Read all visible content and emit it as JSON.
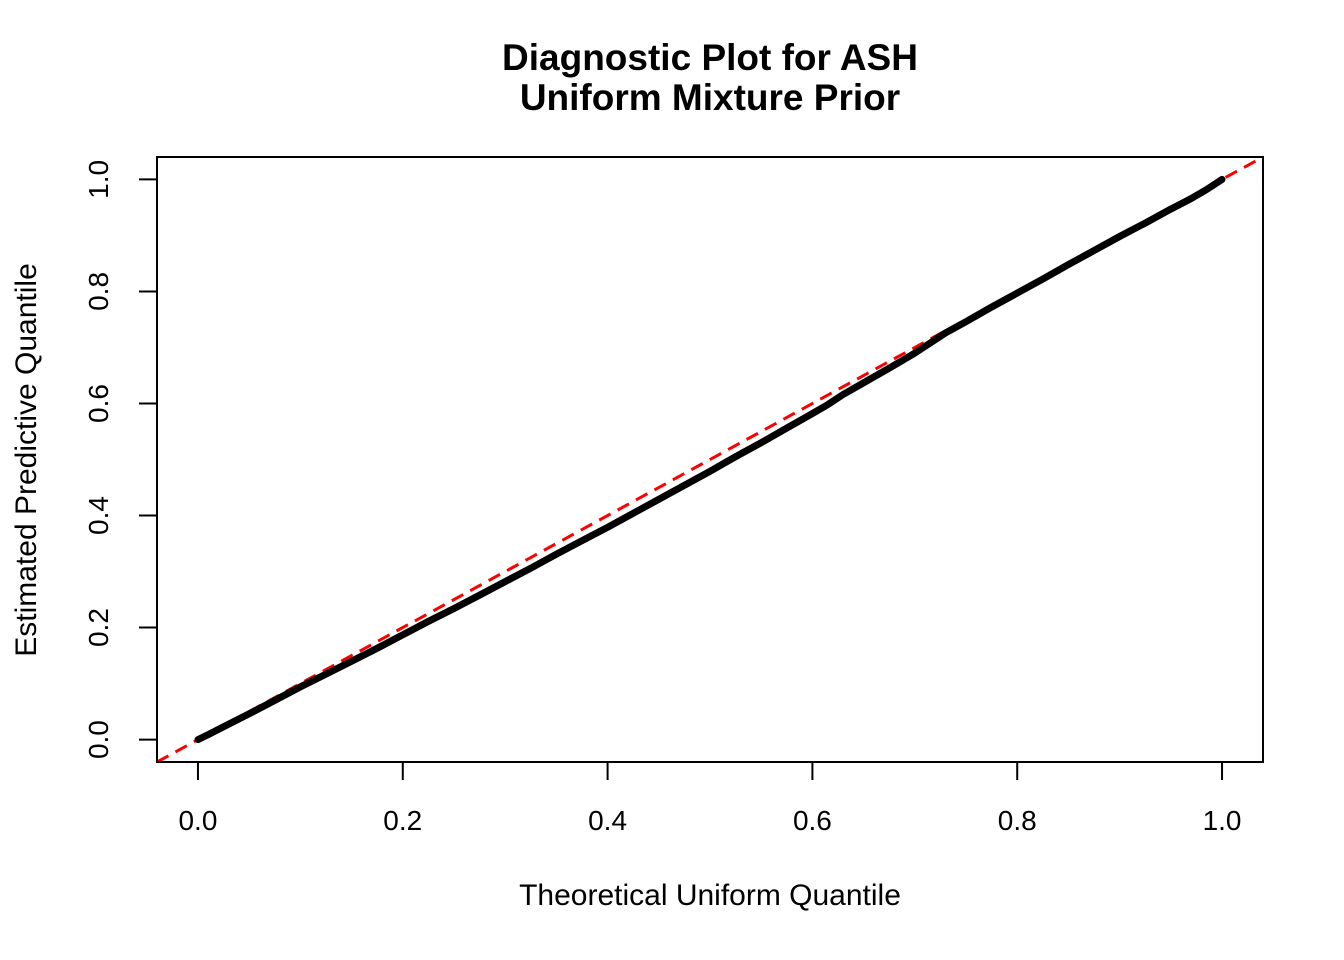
{
  "chart_data": {
    "type": "scatter",
    "title_line1": "Diagnostic Plot for ASH",
    "title_line2": "Uniform Mixture Prior",
    "xlabel": "Theoretical Uniform Quantile",
    "ylabel": "Estimated Predictive Quantile",
    "xlim": [
      -0.04,
      1.04
    ],
    "ylim": [
      -0.04,
      1.04
    ],
    "grid": false,
    "legend": null,
    "x_ticks": {
      "values": [
        0.0,
        0.2,
        0.4,
        0.6,
        0.8,
        1.0
      ],
      "labels": [
        "0.0",
        "0.2",
        "0.4",
        "0.6",
        "0.8",
        "1.0"
      ]
    },
    "y_ticks": {
      "values": [
        0.0,
        0.2,
        0.4,
        0.6,
        0.8,
        1.0
      ],
      "labels": [
        "0.0",
        "0.2",
        "0.4",
        "0.6",
        "0.8",
        "1.0"
      ]
    },
    "reference_line": {
      "name": "y-equals-x-diagonal",
      "color": "#FF0000",
      "style": "dashed",
      "from": [
        -0.04,
        -0.04
      ],
      "to": [
        1.04,
        1.04
      ]
    },
    "series": [
      {
        "name": "estimated-predictive-quantiles",
        "color": "#000000",
        "marker": "point",
        "points": [
          [
            0.0,
            0.0
          ],
          [
            0.01,
            0.009
          ],
          [
            0.025,
            0.023
          ],
          [
            0.05,
            0.046
          ],
          [
            0.075,
            0.07
          ],
          [
            0.1,
            0.094
          ],
          [
            0.125,
            0.117
          ],
          [
            0.15,
            0.14
          ],
          [
            0.175,
            0.163
          ],
          [
            0.2,
            0.187
          ],
          [
            0.225,
            0.211
          ],
          [
            0.25,
            0.234
          ],
          [
            0.275,
            0.258
          ],
          [
            0.3,
            0.282
          ],
          [
            0.325,
            0.306
          ],
          [
            0.35,
            0.331
          ],
          [
            0.375,
            0.355
          ],
          [
            0.4,
            0.379
          ],
          [
            0.425,
            0.404
          ],
          [
            0.45,
            0.429
          ],
          [
            0.475,
            0.454
          ],
          [
            0.5,
            0.479
          ],
          [
            0.525,
            0.505
          ],
          [
            0.55,
            0.53
          ],
          [
            0.575,
            0.556
          ],
          [
            0.6,
            0.582
          ],
          [
            0.615,
            0.598
          ],
          [
            0.63,
            0.616
          ],
          [
            0.65,
            0.637
          ],
          [
            0.675,
            0.663
          ],
          [
            0.7,
            0.69
          ],
          [
            0.715,
            0.708
          ],
          [
            0.73,
            0.726
          ],
          [
            0.75,
            0.746
          ],
          [
            0.775,
            0.772
          ],
          [
            0.8,
            0.797
          ],
          [
            0.825,
            0.822
          ],
          [
            0.85,
            0.848
          ],
          [
            0.875,
            0.873
          ],
          [
            0.9,
            0.898
          ],
          [
            0.925,
            0.922
          ],
          [
            0.95,
            0.947
          ],
          [
            0.97,
            0.966
          ],
          [
            0.985,
            0.982
          ],
          [
            1.0,
            1.0
          ]
        ]
      }
    ]
  },
  "colors": {
    "background": "#FFFFFF",
    "axis": "#000000",
    "data_curve": "#000000",
    "reference_line": "#FF0000"
  },
  "layout_text": {}
}
